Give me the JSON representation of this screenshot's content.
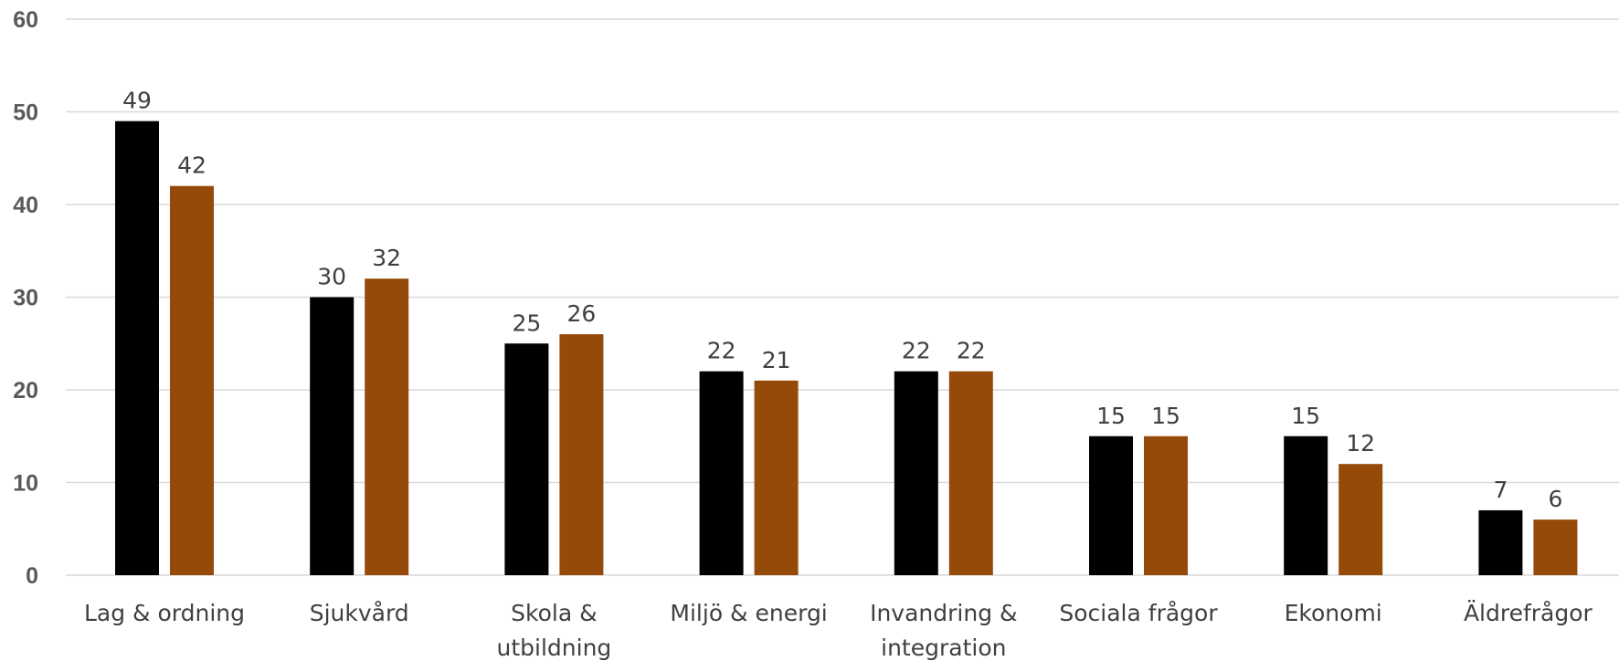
{
  "chart_data": {
    "type": "bar",
    "categories": [
      [
        "Lag & ordning"
      ],
      [
        "Sjukvård"
      ],
      [
        "Skola &",
        "utbildning"
      ],
      [
        "Miljö & energi"
      ],
      [
        "Invandring &",
        "integration"
      ],
      [
        "Sociala frågor"
      ],
      [
        "Ekonomi"
      ],
      [
        "Äldrefrågor"
      ]
    ],
    "series": [
      {
        "values": [
          49,
          30,
          25,
          22,
          22,
          15,
          15,
          7
        ],
        "color": "#000000"
      },
      {
        "values": [
          42,
          32,
          26,
          21,
          22,
          15,
          12,
          6
        ],
        "color": "#954a09"
      }
    ],
    "ylim": [
      0,
      60
    ],
    "yticks": [
      "0",
      "10",
      "20",
      "30",
      "40",
      "50",
      "60"
    ],
    "grid": true,
    "legend": "none",
    "data_labels": true
  }
}
